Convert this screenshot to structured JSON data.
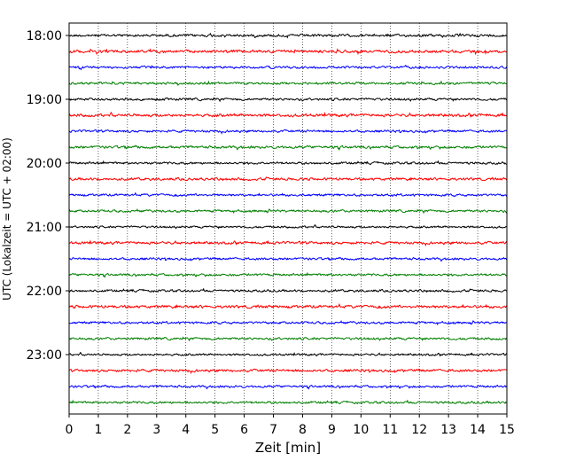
{
  "chart_data": {
    "type": "line",
    "title": "",
    "xlabel": "Zeit  [min]",
    "ylabel": "UTC (Lokalzeit = UTC + 02:00)",
    "xlim": [
      0,
      15
    ],
    "x_ticks": [
      "0",
      "1",
      "2",
      "3",
      "4",
      "5",
      "6",
      "7",
      "8",
      "9",
      "10",
      "11",
      "12",
      "13",
      "14",
      "15"
    ],
    "y_ticks": [
      "18:00",
      "19:00",
      "20:00",
      "21:00",
      "22:00",
      "23:00"
    ],
    "grid": "vertical dotted",
    "legend": "none",
    "colors": [
      "#000000",
      "#ff0000",
      "#0000ff",
      "#008000"
    ],
    "series": [
      {
        "start": "18:00",
        "amplitude": 2.0
      },
      {
        "start": "18:15",
        "amplitude": 2.2
      },
      {
        "start": "18:30",
        "amplitude": 1.8
      },
      {
        "start": "18:45",
        "amplitude": 1.8
      },
      {
        "start": "19:00",
        "amplitude": 1.8
      },
      {
        "start": "19:15",
        "amplitude": 2.2
      },
      {
        "start": "19:30",
        "amplitude": 1.8
      },
      {
        "start": "19:45",
        "amplitude": 2.0
      },
      {
        "start": "20:00",
        "amplitude": 1.8
      },
      {
        "start": "20:15",
        "amplitude": 2.0
      },
      {
        "start": "20:30",
        "amplitude": 1.8
      },
      {
        "start": "20:45",
        "amplitude": 1.8
      },
      {
        "start": "21:00",
        "amplitude": 1.6
      },
      {
        "start": "21:15",
        "amplitude": 2.0
      },
      {
        "start": "21:30",
        "amplitude": 1.8
      },
      {
        "start": "21:45",
        "amplitude": 1.8
      },
      {
        "start": "22:00",
        "amplitude": 1.8
      },
      {
        "start": "22:15",
        "amplitude": 2.2
      },
      {
        "start": "22:30",
        "amplitude": 1.8
      },
      {
        "start": "22:45",
        "amplitude": 1.8
      },
      {
        "start": "23:00",
        "amplitude": 1.6
      },
      {
        "start": "23:15",
        "amplitude": 2.0
      },
      {
        "start": "23:30",
        "amplitude": 1.8
      },
      {
        "start": "23:45",
        "amplitude": 1.8
      }
    ]
  }
}
